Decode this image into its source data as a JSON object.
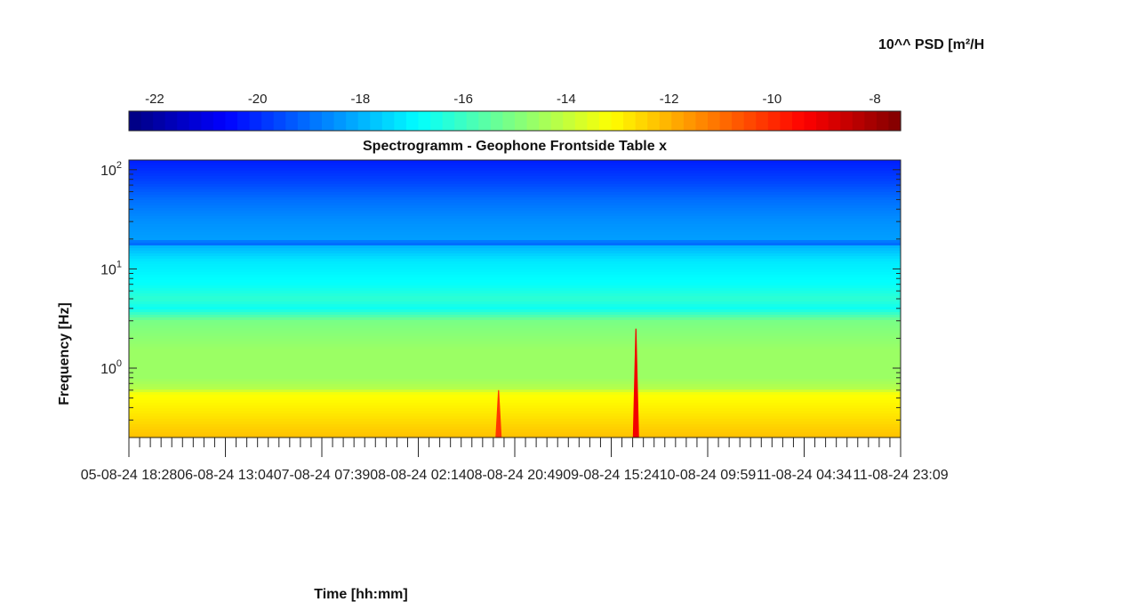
{
  "chart_data": {
    "type": "heatmap",
    "title": "Spectrogramm - Geophone Frontside Table x",
    "xlabel": "Time [hh:mm]",
    "ylabel": "Frequency [Hz]",
    "colorbar": {
      "label": "10^^ PSD [m²/H",
      "range": [
        -22.5,
        -7.5
      ],
      "ticks": [
        -22,
        -20,
        -18,
        -16,
        -14,
        -12,
        -10,
        -8
      ],
      "tick_labels": [
        "-22",
        "-20",
        "-18",
        "-16",
        "-14",
        "-12",
        "-10",
        "-8"
      ],
      "colormap": "jet",
      "placement": "top"
    },
    "x_tick_labels": [
      "05-08-24 18:28",
      "06-08-24 13:04",
      "07-08-24 07:39",
      "08-08-24 02:14",
      "08-08-24 20:49",
      "09-08-24 15:24",
      "10-08-24 09:59",
      "11-08-24 04:34",
      "11-08-24 23:09"
    ],
    "y_axis": {
      "scale": "log",
      "range": [
        0.2,
        125
      ],
      "ticks": [
        1,
        10,
        100
      ],
      "tick_labels": [
        {
          "base": "10",
          "exp": "0"
        },
        {
          "base": "10",
          "exp": "1"
        },
        {
          "base": "10",
          "exp": "2"
        }
      ]
    },
    "psd_profile": [
      {
        "f": 0.2,
        "v": -12.2
      },
      {
        "f": 0.35,
        "v": -12.8
      },
      {
        "f": 0.55,
        "v": -13.2
      },
      {
        "f": 0.62,
        "v": -14.2
      },
      {
        "f": 0.8,
        "v": -14.6
      },
      {
        "f": 1.5,
        "v": -14.6
      },
      {
        "f": 3,
        "v": -15.1
      },
      {
        "f": 4,
        "v": -16.7
      },
      {
        "f": 5,
        "v": -16.2
      },
      {
        "f": 7,
        "v": -16.8
      },
      {
        "f": 12,
        "v": -17.2
      },
      {
        "f": 17,
        "v": -18.0
      },
      {
        "f": 18,
        "v": -19.3
      },
      {
        "f": 20,
        "v": -18.3
      },
      {
        "f": 30,
        "v": -18.5
      },
      {
        "f": 50,
        "v": -19.0
      },
      {
        "f": 80,
        "v": -19.7
      },
      {
        "f": 125,
        "v": -20.2
      }
    ],
    "events": [
      {
        "t": 0.479,
        "f_top": 0.6,
        "v": -10.2
      },
      {
        "t": 0.657,
        "f_top": 2.5,
        "v": -9.2
      }
    ],
    "grid": false
  }
}
